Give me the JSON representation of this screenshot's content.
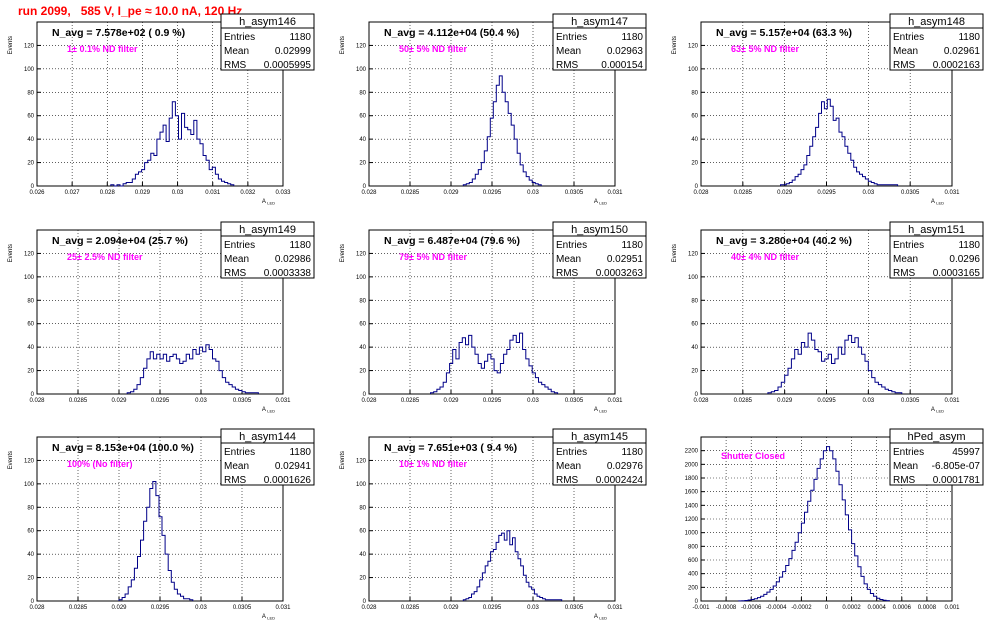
{
  "title": "run 2099,   585 V, I_pe ≈ 10.0 nA, 120 Hz",
  "chart_data": [
    {
      "type": "histogram",
      "name": "h_asym146",
      "navg": "N_avg = 7.578e+02 ( 0.9 %)",
      "filter": "1± 0.1% ND filter",
      "stats": {
        "Entries": "1180",
        "Mean": "0.02999",
        "RMS": "0.0005995"
      },
      "xlim": [
        0.026,
        0.033
      ],
      "ylim": [
        0,
        140
      ],
      "xticks": [
        0.026,
        0.027,
        0.028,
        0.029,
        0.03,
        0.031,
        0.032,
        0.033
      ],
      "xtick_labels": [
        "0.026",
        "0.027",
        "0.028",
        "0.029",
        "0.03",
        "0.031",
        "0.032",
        "0.033"
      ],
      "yticks": [
        0,
        20,
        40,
        60,
        80,
        100,
        120
      ],
      "ytick_labels": [
        "0",
        "20",
        "40",
        "60",
        "80",
        "100",
        "120"
      ],
      "xlabel": "A",
      "xlabel_sub": "LED",
      "ylabel": "Events",
      "bins": [
        0.0281,
        0.0316
      ],
      "counts": [
        1,
        0,
        1,
        0,
        2,
        3,
        3,
        6,
        10,
        12,
        14,
        20,
        22,
        28,
        26,
        40,
        46,
        52,
        38,
        58,
        72,
        60,
        40,
        62,
        50,
        48,
        44,
        56,
        40,
        36,
        26,
        22,
        14,
        16,
        10,
        6,
        4,
        3,
        2,
        1
      ]
    },
    {
      "type": "histogram",
      "name": "h_asym147",
      "navg": "N_avg = 4.112e+04 (50.4 %)",
      "filter": "50± 5% ND filter",
      "stats": {
        "Entries": "1180",
        "Mean": "0.02963",
        "RMS": "0.000154"
      },
      "xlim": [
        0.028,
        0.031
      ],
      "ylim": [
        0,
        140
      ],
      "xticks": [
        0.028,
        0.0285,
        0.029,
        0.0295,
        0.03,
        0.0305,
        0.031
      ],
      "xtick_labels": [
        "0.028",
        "0.0285",
        "0.029",
        "0.0295",
        "0.03",
        "0.0305",
        "0.031"
      ],
      "yticks": [
        0,
        20,
        40,
        60,
        80,
        100,
        120
      ],
      "ytick_labels": [
        "0",
        "20",
        "40",
        "60",
        "80",
        "100",
        "120"
      ],
      "xlabel": "A",
      "xlabel_sub": "LED",
      "ylabel": "Events",
      "bins": [
        0.02915,
        0.0301
      ],
      "counts": [
        1,
        2,
        3,
        6,
        10,
        14,
        20,
        30,
        42,
        58,
        72,
        86,
        94,
        80,
        72,
        62,
        52,
        40,
        28,
        18,
        12,
        8,
        5,
        3,
        2,
        1
      ]
    },
    {
      "type": "histogram",
      "name": "h_asym148",
      "navg": "N_avg = 5.157e+04 (63.3 %)",
      "filter": "63± 5% ND filter",
      "stats": {
        "Entries": "1180",
        "Mean": "0.02961",
        "RMS": "0.0002163"
      },
      "xlim": [
        0.028,
        0.031
      ],
      "ylim": [
        0,
        140
      ],
      "xticks": [
        0.028,
        0.0285,
        0.029,
        0.0295,
        0.03,
        0.0305,
        0.031
      ],
      "xtick_labels": [
        "0.028",
        "0.0285",
        "0.029",
        "0.0295",
        "0.03",
        "0.0305",
        "0.031"
      ],
      "yticks": [
        0,
        20,
        40,
        60,
        80,
        100,
        120
      ],
      "ytick_labels": [
        "0",
        "20",
        "40",
        "60",
        "80",
        "100",
        "120"
      ],
      "xlabel": "A",
      "xlabel_sub": "LED",
      "ylabel": "Events",
      "bins": [
        0.02895,
        0.03035
      ],
      "counts": [
        1,
        1,
        2,
        3,
        5,
        8,
        10,
        14,
        18,
        26,
        34,
        42,
        50,
        62,
        72,
        66,
        74,
        68,
        56,
        58,
        46,
        42,
        34,
        28,
        22,
        16,
        12,
        10,
        8,
        6,
        4,
        3,
        2,
        1,
        1,
        1,
        1,
        1,
        1,
        1
      ]
    },
    {
      "type": "histogram",
      "name": "h_asym149",
      "navg": "N_avg = 2.094e+04 (25.7 %)",
      "filter": "25± 2.5% ND filter",
      "stats": {
        "Entries": "1180",
        "Mean": "0.02986",
        "RMS": "0.0003338"
      },
      "xlim": [
        0.028,
        0.031
      ],
      "ylim": [
        0,
        140
      ],
      "xticks": [
        0.028,
        0.0285,
        0.029,
        0.0295,
        0.03,
        0.0305,
        0.031
      ],
      "xtick_labels": [
        "0.028",
        "0.0285",
        "0.029",
        "0.0295",
        "0.03",
        "0.0305",
        "0.031"
      ],
      "yticks": [
        0,
        20,
        40,
        60,
        80,
        100,
        120
      ],
      "ytick_labels": [
        "0",
        "20",
        "40",
        "60",
        "80",
        "100",
        "120"
      ],
      "xlabel": "A",
      "xlabel_sub": "LED",
      "ylabel": "Events",
      "bins": [
        0.0291,
        0.0307
      ],
      "counts": [
        1,
        2,
        4,
        8,
        14,
        22,
        30,
        36,
        30,
        34,
        30,
        34,
        28,
        32,
        34,
        30,
        26,
        28,
        34,
        30,
        38,
        34,
        40,
        36,
        42,
        38,
        30,
        28,
        20,
        14,
        10,
        8,
        6,
        4,
        3,
        2,
        1,
        1,
        1,
        1
      ]
    },
    {
      "type": "histogram",
      "name": "h_asym150",
      "navg": "N_avg = 6.487e+04 (79.6 %)",
      "filter": "79± 5% ND filter",
      "stats": {
        "Entries": "1180",
        "Mean": "0.02951",
        "RMS": "0.0003263"
      },
      "xlim": [
        0.028,
        0.031
      ],
      "ylim": [
        0,
        140
      ],
      "xticks": [
        0.028,
        0.0285,
        0.029,
        0.0295,
        0.03,
        0.0305,
        0.031
      ],
      "xtick_labels": [
        "0.028",
        "0.0285",
        "0.029",
        "0.0295",
        "0.03",
        "0.0305",
        "0.031"
      ],
      "yticks": [
        0,
        20,
        40,
        60,
        80,
        100,
        120
      ],
      "ytick_labels": [
        "0",
        "20",
        "40",
        "60",
        "80",
        "100",
        "120"
      ],
      "xlabel": "A",
      "xlabel_sub": "LED",
      "ylabel": "Events",
      "bins": [
        0.02875,
        0.0303
      ],
      "counts": [
        1,
        2,
        4,
        6,
        10,
        18,
        26,
        38,
        30,
        44,
        48,
        42,
        50,
        40,
        34,
        26,
        22,
        28,
        34,
        30,
        20,
        18,
        26,
        34,
        38,
        46,
        50,
        44,
        52,
        38,
        30,
        24,
        18,
        14,
        10,
        8,
        6,
        4,
        2,
        1
      ]
    },
    {
      "type": "histogram",
      "name": "h_asym151",
      "navg": "N_avg = 3.280e+04 (40.2 %)",
      "filter": "40± 4% ND filter",
      "stats": {
        "Entries": "1180",
        "Mean": "0.0296",
        "RMS": "0.0003165"
      },
      "xlim": [
        0.028,
        0.031
      ],
      "ylim": [
        0,
        140
      ],
      "xticks": [
        0.028,
        0.0285,
        0.029,
        0.0295,
        0.03,
        0.0305,
        0.031
      ],
      "xtick_labels": [
        "0.028",
        "0.0285",
        "0.029",
        "0.0295",
        "0.03",
        "0.0305",
        "0.031"
      ],
      "yticks": [
        0,
        20,
        40,
        60,
        80,
        100,
        120
      ],
      "ytick_labels": [
        "0",
        "20",
        "40",
        "60",
        "80",
        "100",
        "120"
      ],
      "xlabel": "A",
      "xlabel_sub": "LED",
      "ylabel": "Events",
      "bins": [
        0.0288,
        0.0304
      ],
      "counts": [
        1,
        2,
        3,
        6,
        10,
        16,
        22,
        30,
        38,
        34,
        44,
        40,
        52,
        46,
        38,
        36,
        28,
        30,
        34,
        26,
        30,
        40,
        34,
        46,
        50,
        44,
        48,
        40,
        34,
        28,
        20,
        14,
        10,
        8,
        6,
        4,
        3,
        2,
        1,
        1
      ]
    },
    {
      "type": "histogram",
      "name": "h_asym144",
      "navg": "N_avg = 8.153e+04 (100.0 %)",
      "filter": "100% (No filter)",
      "stats": {
        "Entries": "1180",
        "Mean": "0.02941",
        "RMS": "0.0001626"
      },
      "xlim": [
        0.028,
        0.031
      ],
      "ylim": [
        0,
        140
      ],
      "xticks": [
        0.028,
        0.0285,
        0.029,
        0.0295,
        0.03,
        0.0305,
        0.031
      ],
      "xtick_labels": [
        "0.028",
        "0.0285",
        "0.029",
        "0.0295",
        "0.03",
        "0.0305",
        "0.031"
      ],
      "yticks": [
        0,
        20,
        40,
        60,
        80,
        100,
        120
      ],
      "ytick_labels": [
        "0",
        "20",
        "40",
        "60",
        "80",
        "100",
        "120"
      ],
      "xlabel": "A",
      "xlabel_sub": "LED",
      "ylabel": "Events",
      "bins": [
        0.029,
        0.0299
      ],
      "counts": [
        1,
        3,
        6,
        12,
        18,
        28,
        38,
        52,
        68,
        80,
        96,
        102,
        90,
        72,
        56,
        40,
        26,
        16,
        10,
        6,
        4,
        2,
        2,
        1
      ]
    },
    {
      "type": "histogram",
      "name": "h_asym145",
      "navg": "N_avg = 7.651e+03 ( 9.4 %)",
      "filter": "10± 1% ND filter",
      "stats": {
        "Entries": "1180",
        "Mean": "0.02976",
        "RMS": "0.0002424"
      },
      "xlim": [
        0.028,
        0.031
      ],
      "ylim": [
        0,
        140
      ],
      "xticks": [
        0.028,
        0.0285,
        0.029,
        0.0295,
        0.03,
        0.0305,
        0.031
      ],
      "xtick_labels": [
        "0.028",
        "0.0285",
        "0.029",
        "0.0295",
        "0.03",
        "0.0305",
        "0.031"
      ],
      "yticks": [
        0,
        20,
        40,
        60,
        80,
        100,
        120
      ],
      "ytick_labels": [
        "0",
        "20",
        "40",
        "60",
        "80",
        "100",
        "120"
      ],
      "xlabel": "A",
      "xlabel_sub": "LED",
      "ylabel": "Events",
      "bins": [
        0.02915,
        0.03035
      ],
      "counts": [
        1,
        2,
        3,
        6,
        8,
        12,
        18,
        24,
        30,
        34,
        42,
        44,
        50,
        56,
        58,
        52,
        60,
        48,
        54,
        42,
        36,
        30,
        22,
        16,
        12,
        10,
        6,
        4,
        3,
        2,
        1,
        1,
        1,
        1,
        1,
        1
      ]
    },
    {
      "type": "histogram",
      "name": "hPed_asym",
      "navg": "",
      "filter": "Shutter Closed",
      "stats": {
        "Entries": "45997",
        "Mean": "-6.805e-07",
        "RMS": "0.0001781"
      },
      "xlim": [
        -0.001,
        0.001
      ],
      "ylim": [
        0,
        2400
      ],
      "xticks": [
        -0.001,
        -0.0008,
        -0.0006,
        -0.0004,
        -0.0002,
        0,
        0.0002,
        0.0004,
        0.0006,
        0.0008,
        0.001
      ],
      "xtick_labels": [
        "-0.001",
        "-0.0008",
        "-0.0006",
        "-0.0004",
        "-0.0002",
        "0",
        "0.0002",
        "0.0004",
        "0.0006",
        "0.0008",
        "0.001"
      ],
      "yticks": [
        0,
        200,
        400,
        600,
        800,
        1000,
        1200,
        1400,
        1600,
        1800,
        2000,
        2200
      ],
      "ytick_labels": [
        "0",
        "200",
        "400",
        "600",
        "800",
        "1000",
        "1200",
        "1400",
        "1600",
        "1800",
        "2000",
        "2200"
      ],
      "xlabel": "",
      "xlabel_sub": "",
      "ylabel": "",
      "bins": [
        -0.0007,
        0.0005
      ],
      "counts": [
        2,
        4,
        8,
        14,
        22,
        34,
        50,
        70,
        96,
        130,
        170,
        220,
        280,
        350,
        430,
        520,
        620,
        740,
        860,
        1000,
        1140,
        1300,
        1460,
        1620,
        1780,
        1940,
        2080,
        2200,
        2260,
        2200,
        2080,
        1900,
        1700,
        1480,
        1260,
        1040,
        840,
        660,
        500,
        360,
        250,
        170,
        110,
        70,
        40,
        22,
        12,
        6
      ]
    }
  ]
}
